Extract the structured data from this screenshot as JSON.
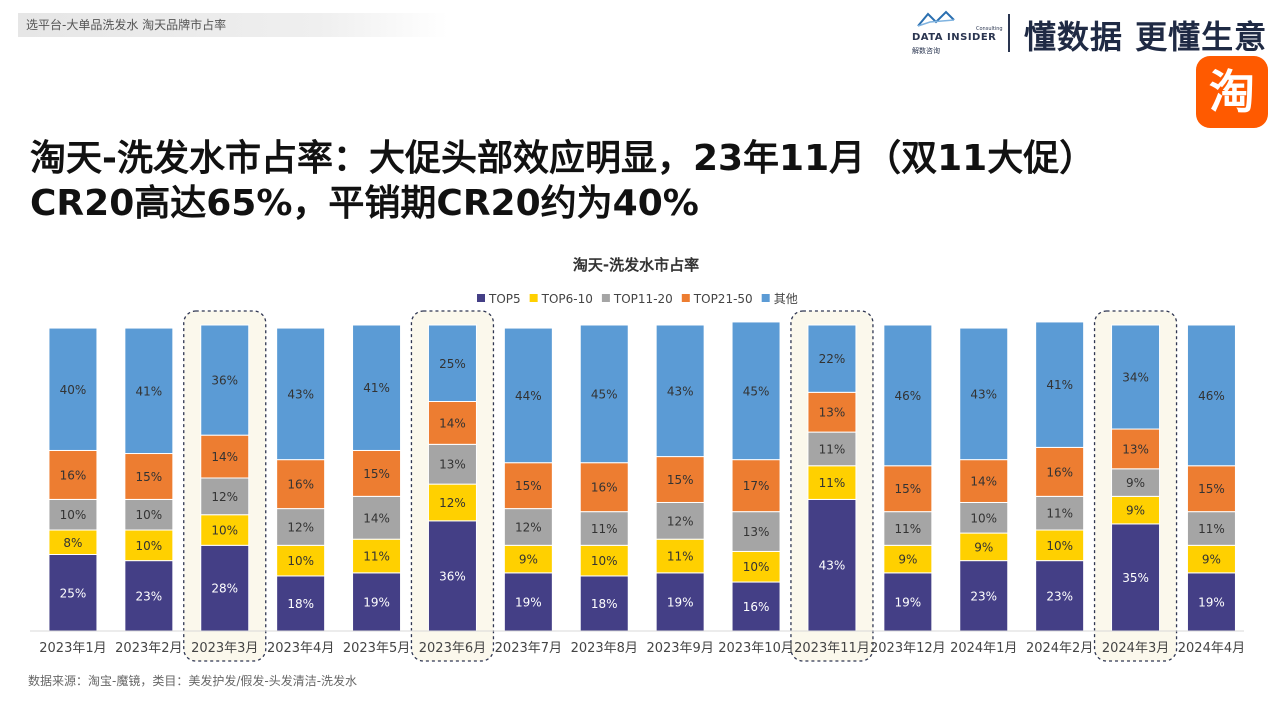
{
  "header": {
    "breadcrumb": "选平台-大单品洗发水 淘天品牌市占率",
    "logo_text": "DATA INSIDER",
    "logo_subtext": "解数咨询",
    "logo_consulting": "Consulting",
    "slogan": "懂数据 更懂生意",
    "taobao_icon_glyph": "淘"
  },
  "page_title": "淘天-洗发水市占率：大促头部效应明显，23年11月（双11大促）CR20高达65%，平销期CR20约为40%",
  "source_note": "数据来源：淘宝-魔镜，类目：美发护发/假发-头发清洁-洗发水",
  "colors": {
    "TOP5": "#443f86",
    "TOP6-10": "#ffd000",
    "TOP11-20": "#a5a5a5",
    "TOP21-50": "#ed7d31",
    "其他": "#5b9bd5",
    "highlight_fill": "#fbf8ec",
    "highlight_stroke": "#2f3652"
  },
  "chart_data": {
    "type": "bar",
    "stacked": true,
    "percent_stacked": true,
    "title": "淘天-洗发水市占率",
    "legend_position": "top",
    "categories": [
      "2023年1月",
      "2023年2月",
      "2023年3月",
      "2023年4月",
      "2023年5月",
      "2023年6月",
      "2023年7月",
      "2023年8月",
      "2023年9月",
      "2023年10月",
      "2023年11月",
      "2023年12月",
      "2024年1月",
      "2024年2月",
      "2024年3月",
      "2024年4月"
    ],
    "series": [
      {
        "name": "TOP5",
        "values": [
          25,
          23,
          28,
          18,
          19,
          36,
          19,
          18,
          19,
          16,
          43,
          19,
          23,
          23,
          35,
          19
        ]
      },
      {
        "name": "TOP6-10",
        "values": [
          8,
          10,
          10,
          10,
          11,
          12,
          9,
          10,
          11,
          10,
          11,
          9,
          9,
          10,
          9,
          9
        ]
      },
      {
        "name": "TOP11-20",
        "values": [
          10,
          10,
          12,
          12,
          14,
          13,
          12,
          11,
          12,
          13,
          11,
          11,
          10,
          11,
          9,
          11
        ]
      },
      {
        "name": "TOP21-50",
        "values": [
          16,
          15,
          14,
          16,
          15,
          14,
          15,
          16,
          15,
          17,
          13,
          15,
          14,
          16,
          13,
          15
        ]
      },
      {
        "name": "其他",
        "values": [
          40,
          41,
          36,
          43,
          41,
          25,
          44,
          45,
          43,
          45,
          22,
          46,
          43,
          41,
          34,
          46
        ]
      }
    ],
    "highlighted_categories": [
      "2023年3月",
      "2023年6月",
      "2023年11月",
      "2024年3月"
    ],
    "ylim": [
      0,
      100
    ],
    "grid": false
  }
}
